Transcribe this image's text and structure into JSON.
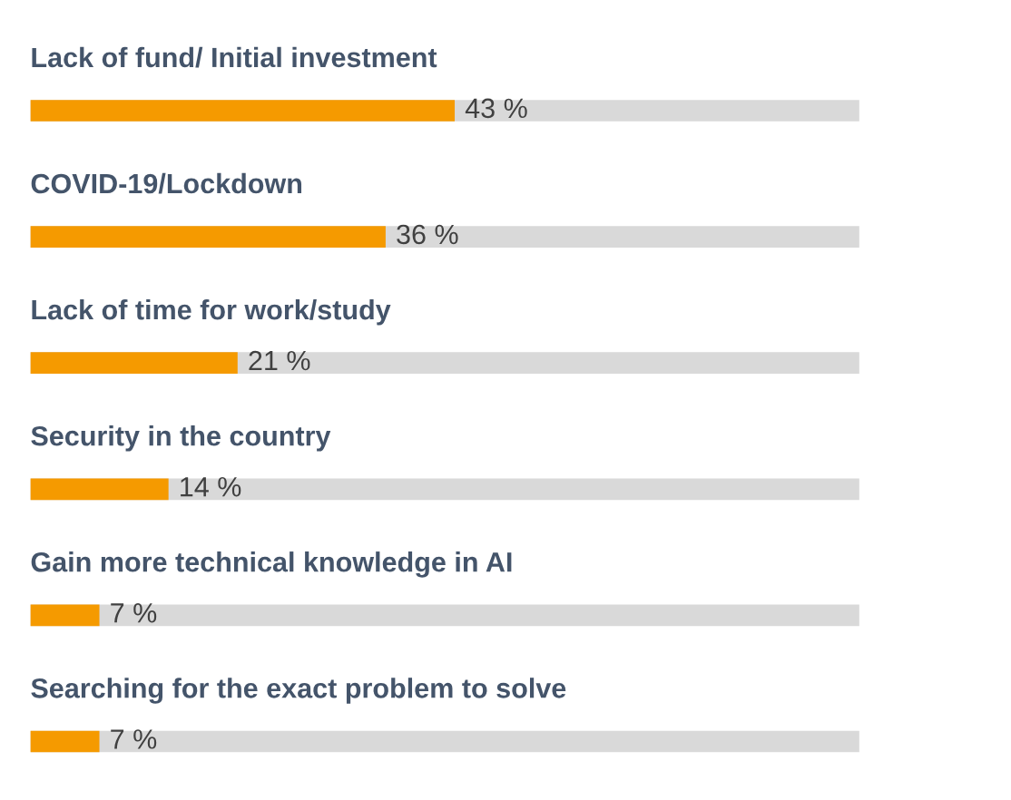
{
  "chart_data": {
    "type": "bar",
    "orientation": "horizontal",
    "categories": [
      "Lack of fund/ Initial investment",
      "COVID-19/Lockdown",
      "Lack of time for work/study",
      "Security in the country",
      "Gain more technical knowledge in AI",
      "Searching for the exact problem to solve"
    ],
    "values": [
      43,
      36,
      21,
      14,
      7,
      7
    ],
    "value_labels": [
      "43 %",
      "36 %",
      "21 %",
      "14 %",
      "7 %",
      "7 %"
    ],
    "color": "#f59a00",
    "xlim": [
      0,
      84
    ]
  }
}
